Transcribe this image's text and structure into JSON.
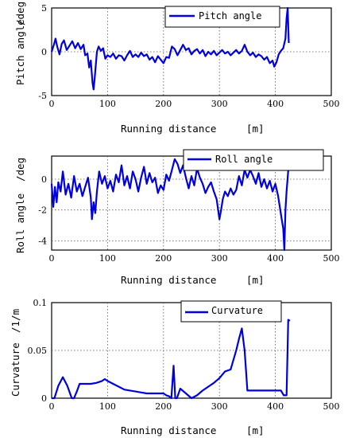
{
  "chart_data": [
    {
      "type": "line",
      "xlabel": "Running distance",
      "xunit": "[m]",
      "ylabel": "Pitch angle",
      "yunit": "/deg",
      "legend": "Pitch angle",
      "legend_position": "top-right",
      "grid": true,
      "color": "#0000dd",
      "xlim": [
        0,
        500
      ],
      "ylim": [
        -5,
        5
      ],
      "xticks": [
        "0",
        "100",
        "200",
        "300",
        "400",
        "500"
      ],
      "yticks": [
        "-5",
        "0",
        "5"
      ],
      "x": [
        0,
        4,
        7,
        10,
        14,
        18,
        22,
        27,
        32,
        37,
        42,
        47,
        52,
        57,
        60,
        64,
        67,
        70,
        73,
        75,
        77,
        79,
        81,
        84,
        88,
        92,
        96,
        100,
        105,
        110,
        115,
        120,
        125,
        130,
        135,
        140,
        145,
        150,
        155,
        160,
        165,
        170,
        175,
        180,
        185,
        190,
        195,
        200,
        205,
        210,
        215,
        220,
        225,
        230,
        235,
        240,
        245,
        250,
        255,
        260,
        265,
        270,
        275,
        280,
        285,
        290,
        295,
        300,
        305,
        310,
        315,
        320,
        325,
        330,
        335,
        340,
        345,
        350,
        355,
        360,
        365,
        370,
        375,
        380,
        385,
        390,
        395,
        398,
        402,
        406,
        410,
        414,
        418,
        420,
        422,
        424
      ],
      "y": [
        0.0,
        0.8,
        1.5,
        0.6,
        -0.3,
        0.9,
        1.3,
        0.2,
        0.7,
        1.2,
        0.4,
        1.0,
        0.3,
        0.8,
        -0.4,
        -0.2,
        -1.8,
        -1.0,
        -3.5,
        -4.3,
        -3.0,
        -1.5,
        0.0,
        0.6,
        0.1,
        0.4,
        -0.8,
        -0.4,
        -0.6,
        -0.2,
        -0.8,
        -0.4,
        -0.5,
        -1.0,
        -0.4,
        0.1,
        -0.6,
        -0.3,
        -0.6,
        -0.1,
        -0.5,
        -0.3,
        -0.9,
        -0.6,
        -1.2,
        -0.5,
        -0.9,
        -1.3,
        -0.6,
        -0.7,
        0.6,
        0.3,
        -0.4,
        0.2,
        0.8,
        0.2,
        0.4,
        -0.3,
        0.1,
        0.3,
        -0.2,
        0.2,
        -0.5,
        0.0,
        -0.3,
        0.1,
        -0.4,
        -0.1,
        0.2,
        -0.2,
        0.0,
        -0.4,
        -0.1,
        0.2,
        -0.2,
        0.1,
        0.8,
        0.0,
        -0.4,
        -0.1,
        -0.6,
        -0.3,
        -0.5,
        -0.9,
        -0.6,
        -1.3,
        -1.0,
        -1.7,
        -1.2,
        -0.3,
        0.1,
        0.4,
        1.5,
        3.8,
        5.5,
        1.0
      ]
    },
    {
      "type": "line",
      "xlabel": "Running distance",
      "xunit": "[m]",
      "ylabel": "Roll angle",
      "yunit": "/deg",
      "legend": "Roll angle",
      "legend_position": "top-right",
      "grid": true,
      "color": "#0000dd",
      "xlim": [
        0,
        500
      ],
      "ylim": [
        -4.6,
        1.5
      ],
      "xticks": [
        "0",
        "100",
        "200",
        "300",
        "400",
        "500"
      ],
      "yticks": [
        "-4",
        "-2",
        "0"
      ],
      "x": [
        0,
        3,
        6,
        9,
        12,
        16,
        20,
        25,
        30,
        35,
        40,
        45,
        50,
        55,
        60,
        65,
        70,
        72,
        75,
        78,
        81,
        85,
        90,
        95,
        100,
        105,
        110,
        115,
        120,
        125,
        130,
        135,
        140,
        145,
        150,
        155,
        160,
        165,
        170,
        175,
        180,
        185,
        190,
        195,
        200,
        205,
        210,
        215,
        220,
        225,
        230,
        235,
        240,
        245,
        250,
        255,
        260,
        265,
        270,
        275,
        280,
        285,
        290,
        295,
        300,
        303,
        306,
        310,
        315,
        320,
        325,
        330,
        335,
        340,
        345,
        350,
        355,
        360,
        365,
        370,
        375,
        380,
        385,
        390,
        395,
        400,
        405,
        408,
        411,
        414,
        416,
        418,
        420,
        422,
        424
      ],
      "y": [
        -0.3,
        -1.8,
        -0.5,
        -1.5,
        -0.2,
        -0.8,
        0.5,
        -1.0,
        -0.3,
        -1.2,
        0.2,
        -0.8,
        -0.3,
        -1.1,
        -0.5,
        0.1,
        -1.2,
        -2.6,
        -1.5,
        -2.2,
        -0.8,
        0.5,
        -0.3,
        0.2,
        -0.6,
        -0.1,
        -0.8,
        0.3,
        -0.2,
        0.9,
        -0.4,
        0.2,
        -0.6,
        0.5,
        0.0,
        -0.8,
        0.1,
        0.8,
        -0.3,
        0.4,
        -0.2,
        0.1,
        -0.9,
        -0.4,
        -0.7,
        0.3,
        -0.1,
        0.6,
        1.3,
        1.0,
        0.4,
        0.9,
        0.1,
        -0.6,
        0.2,
        -0.4,
        0.7,
        0.1,
        -0.3,
        -0.9,
        -0.5,
        -0.2,
        -0.8,
        -1.3,
        -2.6,
        -2.0,
        -1.3,
        -0.8,
        -1.1,
        -0.6,
        -1.0,
        -0.7,
        0.2,
        -0.4,
        0.6,
        0.1,
        0.6,
        0.2,
        -0.3,
        0.4,
        -0.5,
        0.0,
        -0.6,
        -0.1,
        -0.8,
        -0.3,
        -1.1,
        -1.8,
        -2.5,
        -3.2,
        -4.6,
        -2.0,
        -0.8,
        0.1,
        1.0
      ]
    },
    {
      "type": "line",
      "xlabel": "Running distance",
      "xunit": "[m]",
      "ylabel": "Curvature",
      "yunit": "/1/m",
      "legend": "Curvature",
      "legend_position": "top-right",
      "grid": true,
      "color": "#0000dd",
      "xlim": [
        0,
        500
      ],
      "ylim": [
        0,
        0.1
      ],
      "xticks": [
        "0",
        "100",
        "200",
        "300",
        "400",
        "500"
      ],
      "yticks": [
        "0",
        "0.05",
        "0.1"
      ],
      "x": [
        0,
        5,
        12,
        20,
        28,
        36,
        40,
        45,
        50,
        60,
        70,
        80,
        90,
        95,
        100,
        110,
        120,
        130,
        140,
        150,
        160,
        170,
        180,
        190,
        200,
        205,
        210,
        214,
        218,
        221,
        224,
        230,
        240,
        250,
        260,
        270,
        280,
        290,
        300,
        310,
        320,
        330,
        335,
        340,
        345,
        350,
        360,
        370,
        380,
        390,
        400,
        410,
        415,
        420,
        423,
        426
      ],
      "y": [
        0.0,
        0.0,
        0.013,
        0.022,
        0.013,
        0.0,
        0.0,
        0.007,
        0.015,
        0.015,
        0.015,
        0.016,
        0.018,
        0.02,
        0.018,
        0.015,
        0.012,
        0.009,
        0.008,
        0.007,
        0.006,
        0.005,
        0.005,
        0.005,
        0.005,
        0.003,
        0.002,
        0.0,
        0.034,
        0.0,
        0.0,
        0.01,
        0.005,
        0.0,
        0.003,
        0.008,
        0.012,
        0.016,
        0.021,
        0.028,
        0.03,
        0.05,
        0.062,
        0.073,
        0.05,
        0.008,
        0.008,
        0.008,
        0.008,
        0.008,
        0.008,
        0.008,
        0.003,
        0.003,
        0.082,
        0.081
      ]
    }
  ]
}
